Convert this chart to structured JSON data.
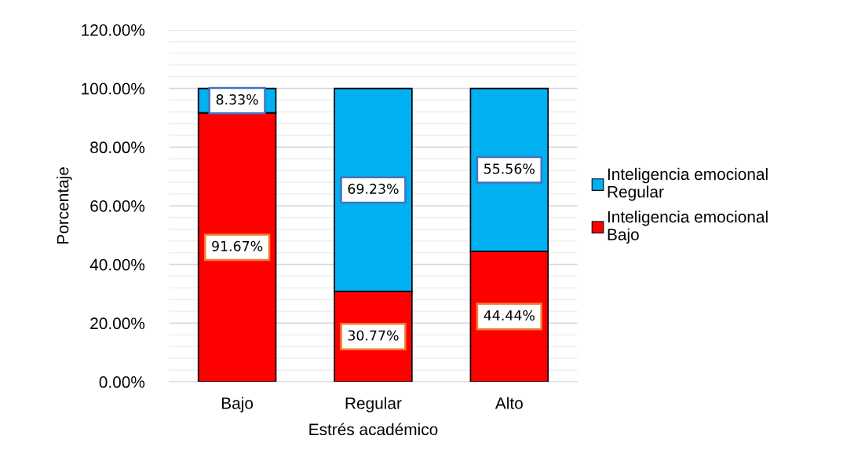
{
  "chart_data": {
    "type": "bar",
    "stacked": true,
    "ylabel": "Porcentaje",
    "xlabel": "Estrés académico",
    "categories": [
      "Bajo",
      "Regular",
      "Alto"
    ],
    "series": [
      {
        "name": "Inteligencia emocional\nBajo",
        "color": "#ff0000",
        "values": [
          91.67,
          30.77,
          44.44
        ],
        "value_labels": [
          "91.67%",
          "30.77%",
          "44.44%"
        ]
      },
      {
        "name": "Inteligencia emocional\nRegular",
        "color": "#00b0f0",
        "values": [
          8.33,
          69.23,
          55.56
        ],
        "value_labels": [
          "8.33%",
          "69.23%",
          "55.56%"
        ]
      }
    ],
    "ylim": [
      0,
      120
    ],
    "yticks": [
      {
        "value": 0,
        "label": "0.00%"
      },
      {
        "value": 4,
        "label": null
      },
      {
        "value": 8,
        "label": null
      },
      {
        "value": 12,
        "label": null
      },
      {
        "value": 16,
        "label": null
      },
      {
        "value": 20,
        "label": "20.00%"
      },
      {
        "value": 24,
        "label": null
      },
      {
        "value": 28,
        "label": null
      },
      {
        "value": 32,
        "label": null
      },
      {
        "value": 36,
        "label": null
      },
      {
        "value": 40,
        "label": "40.00%"
      },
      {
        "value": 44,
        "label": null
      },
      {
        "value": 48,
        "label": null
      },
      {
        "value": 52,
        "label": null
      },
      {
        "value": 56,
        "label": null
      },
      {
        "value": 60,
        "label": "60.00%"
      },
      {
        "value": 64,
        "label": null
      },
      {
        "value": 68,
        "label": null
      },
      {
        "value": 72,
        "label": null
      },
      {
        "value": 76,
        "label": null
      },
      {
        "value": 80,
        "label": "80.00%"
      },
      {
        "value": 84,
        "label": null
      },
      {
        "value": 88,
        "label": null
      },
      {
        "value": 92,
        "label": null
      },
      {
        "value": 96,
        "label": null
      },
      {
        "value": 100,
        "label": "100.00%"
      },
      {
        "value": 104,
        "label": null
      },
      {
        "value": 108,
        "label": null
      },
      {
        "value": 112,
        "label": null
      },
      {
        "value": 116,
        "label": null
      },
      {
        "value": 120,
        "label": "120.00%"
      }
    ],
    "grid": "y",
    "legend": "right"
  }
}
